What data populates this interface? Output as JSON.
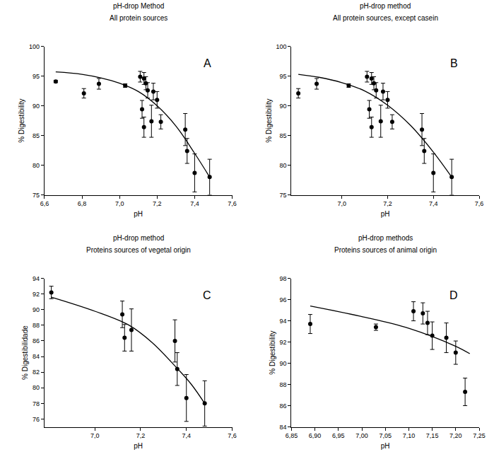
{
  "chart_data": [
    {
      "type": "scatter",
      "title": "pH-drop Method",
      "subtitle": "All protein sources",
      "label": "A",
      "x_label": "pH",
      "y_label": "% Digestibility",
      "color": "#000000",
      "marker": "circle",
      "line_style": "solid",
      "grid": false,
      "x": [
        6.66,
        6.81,
        6.89,
        7.03,
        7.11,
        7.12,
        7.13,
        7.13,
        7.14,
        7.15,
        7.17,
        7.18,
        7.2,
        7.22,
        7.35,
        7.36,
        7.4,
        7.48
      ],
      "values": [
        94.1,
        92.1,
        93.7,
        93.4,
        94.9,
        89.4,
        94.6,
        86.4,
        93.8,
        92.6,
        87.4,
        92.4,
        91.0,
        87.3,
        86.0,
        82.4,
        78.7,
        78.0
      ],
      "errors": [
        0.2,
        0.8,
        0.9,
        0.3,
        0.9,
        1.5,
        1.0,
        1.7,
        1.1,
        1.3,
        2.7,
        1.4,
        1.4,
        1.2,
        2.7,
        2.1,
        3.2,
        3.0
      ],
      "curve": {
        "x": [
          6.66,
          6.8,
          6.9,
          7.0,
          7.1,
          7.2,
          7.3,
          7.4,
          7.48
        ],
        "values": [
          95.7,
          95.3,
          94.7,
          93.8,
          92.4,
          90.0,
          86.6,
          82.0,
          78.0
        ]
      },
      "xlim": [
        6.6,
        7.6
      ],
      "xticks": [
        {
          "value": 6.6,
          "label": "6,6"
        },
        {
          "value": 6.8,
          "label": "6,8"
        },
        {
          "value": 7.0,
          "label": "7,0"
        },
        {
          "value": 7.2,
          "label": "7,2"
        },
        {
          "value": 7.4,
          "label": "7,4"
        },
        {
          "value": 7.6,
          "label": "7,6"
        }
      ],
      "ylim": [
        75,
        100
      ],
      "yticks": [
        75,
        80,
        85,
        90,
        95,
        100
      ]
    },
    {
      "type": "scatter",
      "title": "pH-drop method",
      "subtitle": "All protein sources, except casein",
      "label": "B",
      "x_label": "pH",
      "y_label": "% Digestibility",
      "color": "#000000",
      "marker": "circle",
      "line_style": "solid",
      "grid": false,
      "x": [
        6.81,
        6.89,
        7.03,
        7.11,
        7.12,
        7.13,
        7.13,
        7.14,
        7.15,
        7.17,
        7.18,
        7.2,
        7.22,
        7.35,
        7.36,
        7.4,
        7.48
      ],
      "values": [
        92.1,
        93.7,
        93.4,
        94.9,
        89.4,
        94.6,
        86.4,
        93.8,
        92.6,
        87.4,
        92.4,
        91.0,
        87.3,
        86.0,
        82.4,
        78.7,
        78.0
      ],
      "errors": [
        0.8,
        0.9,
        0.3,
        0.9,
        1.5,
        1.0,
        1.7,
        1.1,
        1.3,
        2.7,
        1.4,
        1.4,
        1.2,
        2.7,
        2.1,
        3.2,
        3.0
      ],
      "curve": {
        "x": [
          6.81,
          6.9,
          7.0,
          7.1,
          7.2,
          7.3,
          7.4,
          7.48
        ],
        "values": [
          95.3,
          94.8,
          93.9,
          92.5,
          90.1,
          86.7,
          82.2,
          78.0
        ]
      },
      "xlim": [
        6.78,
        7.6
      ],
      "xticks": [
        {
          "value": 7.0,
          "label": "7,0"
        },
        {
          "value": 7.2,
          "label": "7,2"
        },
        {
          "value": 7.4,
          "label": "7,4"
        },
        {
          "value": 7.6,
          "label": "7,6"
        }
      ],
      "ylim": [
        75,
        100
      ],
      "yticks": [
        75,
        80,
        85,
        90,
        95,
        100
      ]
    },
    {
      "type": "scatter",
      "title": "pH-drop method",
      "subtitle": "Proteins sources of vegetal origin",
      "label": "C",
      "x_label": "pH",
      "y_label": "% Digestibilidade",
      "color": "#000000",
      "marker": "circle",
      "line_style": "solid",
      "grid": false,
      "x": [
        6.81,
        7.12,
        7.13,
        7.16,
        7.35,
        7.36,
        7.4,
        7.48
      ],
      "values": [
        92.2,
        89.4,
        86.4,
        87.4,
        86.0,
        82.4,
        78.7,
        78.0
      ],
      "errors": [
        0.8,
        1.7,
        1.7,
        2.7,
        2.7,
        2.1,
        3.0,
        2.9
      ],
      "curve": {
        "x": [
          6.81,
          7.0,
          7.15,
          7.25,
          7.35,
          7.42,
          7.48
        ],
        "values": [
          91.6,
          89.8,
          88.0,
          85.8,
          82.8,
          80.5,
          78.0
        ]
      },
      "xlim": [
        6.78,
        7.6
      ],
      "xticks": [
        {
          "value": 7.0,
          "label": "7,0"
        },
        {
          "value": 7.2,
          "label": "7,2"
        },
        {
          "value": 7.4,
          "label": "7,4"
        },
        {
          "value": 7.6,
          "label": "7,6"
        }
      ],
      "ylim": [
        75,
        94
      ],
      "yticks": [
        76,
        78,
        80,
        82,
        84,
        86,
        88,
        90,
        92,
        94
      ]
    },
    {
      "type": "scatter",
      "title": "pH-drop methods",
      "subtitle": "Proteins sources of animal origin",
      "label": "D",
      "x_label": "pH",
      "y_label": "% Digestibility",
      "color": "#000000",
      "marker": "circle",
      "line_style": "solid",
      "grid": false,
      "x": [
        6.89,
        7.03,
        7.11,
        7.13,
        7.14,
        7.15,
        7.18,
        7.2,
        7.22
      ],
      "values": [
        93.7,
        93.4,
        94.9,
        94.7,
        93.8,
        92.6,
        92.4,
        91.0,
        87.3
      ],
      "errors": [
        0.9,
        0.3,
        0.9,
        1.0,
        1.1,
        1.3,
        1.4,
        1.1,
        1.3
      ],
      "curve": {
        "x": [
          6.89,
          7.0,
          7.1,
          7.2,
          7.23
        ],
        "values": [
          95.4,
          94.4,
          93.3,
          91.6,
          90.9
        ]
      },
      "xlim": [
        6.85,
        7.25
      ],
      "xticks": [
        {
          "value": 6.85,
          "label": "6,85"
        },
        {
          "value": 6.9,
          "label": "6,90"
        },
        {
          "value": 6.95,
          "label": "6,95"
        },
        {
          "value": 7.0,
          "label": "7,00"
        },
        {
          "value": 7.05,
          "label": "7,05"
        },
        {
          "value": 7.1,
          "label": "7,10"
        },
        {
          "value": 7.15,
          "label": "7,15"
        },
        {
          "value": 7.2,
          "label": "7,20"
        },
        {
          "value": 7.25,
          "label": "7,25"
        }
      ],
      "ylim": [
        84,
        98
      ],
      "yticks": [
        84,
        86,
        88,
        90,
        92,
        94,
        96,
        98
      ]
    }
  ]
}
